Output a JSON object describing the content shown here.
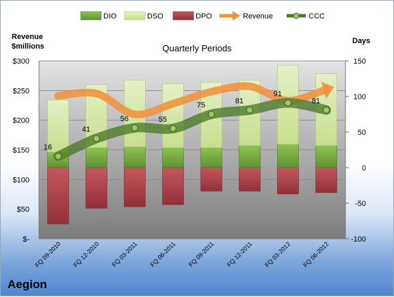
{
  "company": "Aegion",
  "chart_data": {
    "type": "bar",
    "title": "Quarterly Periods",
    "left_axis_label_line1": "Revenue",
    "left_axis_label_line2": "$millions",
    "right_axis_label": "Days",
    "left_ylim": [
      0,
      300
    ],
    "right_ylim": [
      -100,
      150
    ],
    "left_ticks": [
      "$-",
      "$50",
      "$100",
      "$150",
      "$200",
      "$250",
      "$300"
    ],
    "right_ticks": [
      "-100",
      "-50",
      "0",
      "50",
      "100",
      "150"
    ],
    "right_tick_values": [
      -100,
      -50,
      0,
      50,
      100,
      150
    ],
    "categories": [
      "FQ 09-2010",
      "FQ 12-2010",
      "FQ 03-2011",
      "FQ 06-2011",
      "FQ 09-2011",
      "FQ 12-2011",
      "FQ 03-2012",
      "FQ 06-2012"
    ],
    "legend": [
      "DIO",
      "DSO",
      "DPO",
      "Revenue",
      "CCC"
    ],
    "legend_position": "top",
    "series": [
      {
        "name": "DIO",
        "axis": "right",
        "color": "#6fa53a",
        "values": [
          22,
          28,
          29,
          28,
          28,
          31,
          33,
          31
        ]
      },
      {
        "name": "DSO",
        "axis": "right",
        "color": "#d3e7a6",
        "values": [
          73,
          89,
          94,
          90,
          92,
          92,
          111,
          101
        ]
      },
      {
        "name": "DPO",
        "axis": "right",
        "color": "#b8444a",
        "values": [
          -79,
          -57,
          -55,
          -52,
          -33,
          -33,
          -37,
          -35
        ]
      },
      {
        "name": "Revenue",
        "axis": "left",
        "color": "#f0913a",
        "values": [
          241,
          245,
          210,
          228,
          248,
          257,
          233,
          252
        ]
      },
      {
        "name": "CCC",
        "axis": "right",
        "color": "#5b7f36",
        "values": [
          16,
          41,
          56,
          55,
          75,
          81,
          91,
          81
        ]
      }
    ],
    "grid": true
  }
}
